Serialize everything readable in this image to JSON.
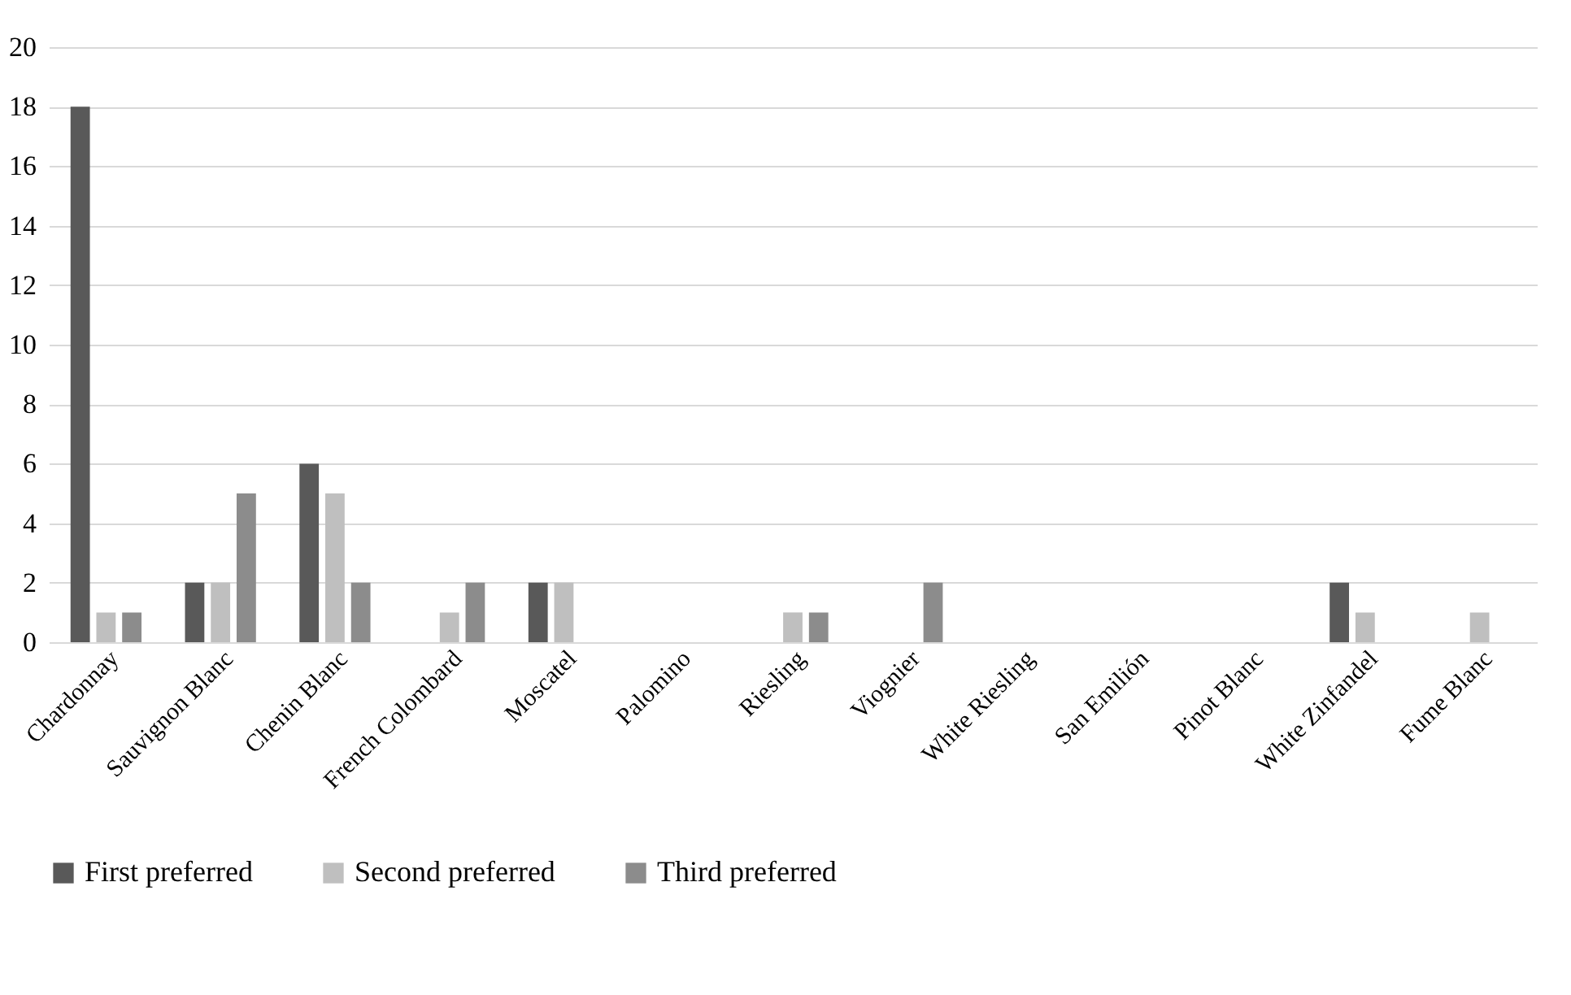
{
  "chart_data": {
    "type": "bar",
    "categories": [
      "Chardonnay",
      "Sauvignon Blanc",
      "Chenin Blanc",
      "French Colombard",
      "Moscatel",
      "Palomino",
      "Riesling",
      "Viognier",
      "White Riesling",
      "San Emilión",
      "Pinot Blanc",
      "White Zinfandel",
      "Fume Blanc"
    ],
    "series": [
      {
        "name": "First preferred",
        "color": "#595959",
        "values": [
          18,
          2,
          6,
          0,
          2,
          0,
          0,
          0,
          0,
          0,
          0,
          2,
          0
        ]
      },
      {
        "name": "Second preferred",
        "color": "#bfbfbf",
        "values": [
          1,
          2,
          5,
          1,
          2,
          0,
          1,
          0,
          0,
          0,
          0,
          1,
          1
        ]
      },
      {
        "name": "Third preferred",
        "color": "#8c8c8c",
        "values": [
          1,
          5,
          2,
          2,
          0,
          0,
          1,
          2,
          0,
          0,
          0,
          0,
          0
        ]
      }
    ],
    "ylim": [
      0,
      20
    ],
    "yticks": [
      0,
      2,
      4,
      6,
      8,
      10,
      12,
      14,
      16,
      18,
      20
    ],
    "grid": "y",
    "legend": "bottom"
  }
}
